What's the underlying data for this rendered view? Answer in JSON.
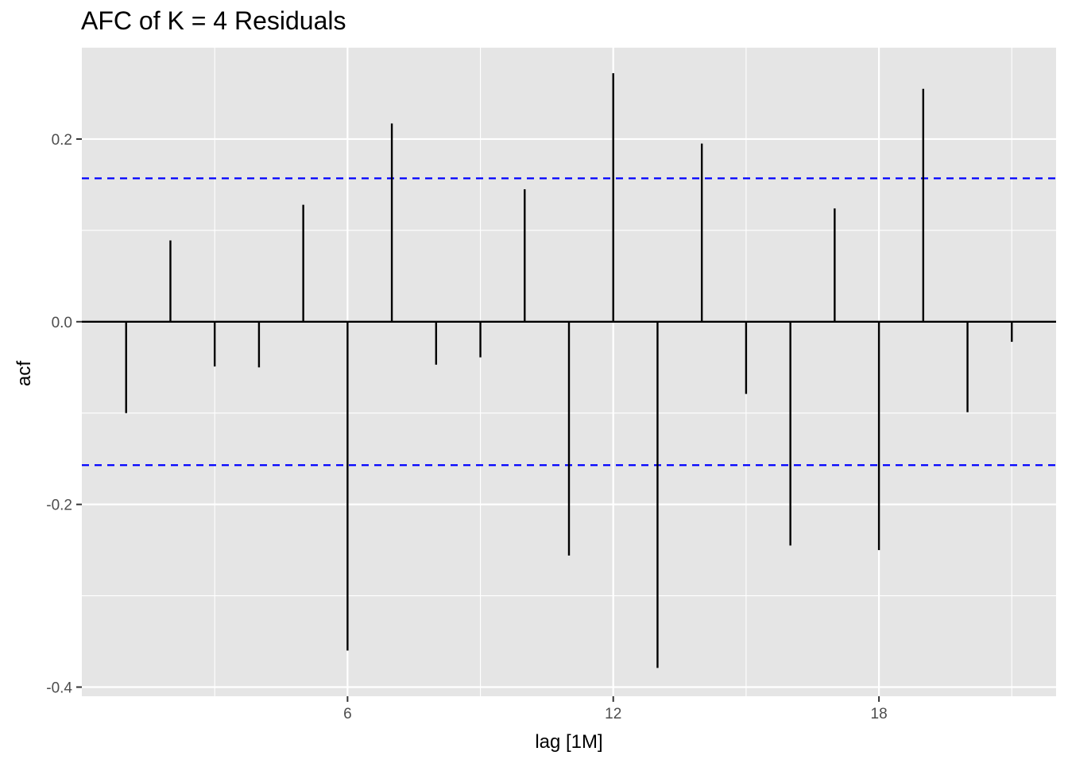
{
  "chart_data": {
    "type": "bar",
    "title": "AFC of K = 4 Residuals",
    "xlabel": "lag [1M]",
    "ylabel": "acf",
    "lags": [
      1,
      2,
      3,
      4,
      5,
      6,
      7,
      8,
      9,
      10,
      11,
      12,
      13,
      14,
      15,
      16,
      17,
      18,
      19,
      20,
      21
    ],
    "values": [
      -0.1,
      0.089,
      -0.049,
      -0.05,
      0.128,
      -0.36,
      0.217,
      -0.047,
      -0.039,
      0.145,
      -0.256,
      0.272,
      -0.379,
      0.195,
      -0.079,
      -0.245,
      0.124,
      -0.25,
      0.255,
      -0.099,
      -0.022
    ],
    "ci_upper": 0.157,
    "ci_lower": -0.157,
    "xlim": [
      0,
      22
    ],
    "ylim": [
      -0.41,
      0.3
    ],
    "x_ticks": [
      6,
      12,
      18
    ],
    "x_tick_labels": [
      "6",
      "12",
      "18"
    ],
    "y_ticks": [
      0.2,
      0.0,
      -0.2,
      -0.4
    ],
    "y_tick_labels": [
      "0.2",
      "0.0",
      "-0.2",
      "-0.4"
    ],
    "x_minor_ticks": [
      3,
      9,
      15,
      21
    ],
    "y_minor_ticks": [
      0.1,
      -0.1,
      -0.3
    ],
    "grid": true,
    "colors": {
      "panel": "#e5e5e5",
      "grid": "#ffffff",
      "bars": "#000000",
      "ci_line": "#0000ff",
      "tick_text": "#4d4d4d"
    }
  }
}
